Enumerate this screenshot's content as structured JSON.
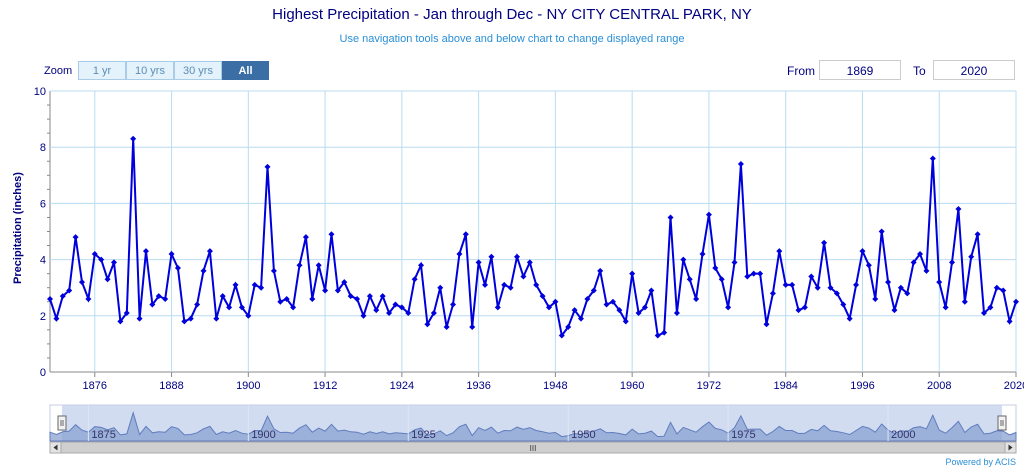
{
  "header": {
    "title": "Highest Precipitation - Jan through Dec - NY CITY CENTRAL PARK, NY",
    "subtitle": "Use navigation tools above and below chart to change displayed range"
  },
  "zoom": {
    "label": "Zoom",
    "buttons": [
      {
        "label": "1 yr",
        "active": false
      },
      {
        "label": "10 yrs",
        "active": false
      },
      {
        "label": "30 yrs",
        "active": false
      },
      {
        "label": "All",
        "active": true
      }
    ]
  },
  "range": {
    "from_label": "From",
    "from_value": "1869",
    "to_label": "To",
    "to_value": "2020"
  },
  "footer": {
    "powered_by": "Powered by ACIS"
  },
  "navigator": {
    "tick_labels": [
      "1875",
      "1900",
      "1925",
      "1950",
      "1975",
      "2000"
    ],
    "scroll_label": "III"
  },
  "colors": {
    "line": "#0000dd",
    "grid": "#b8dcf2",
    "text": "#000080",
    "nav_fill": "#8aa3d2",
    "nav_selection": "#c6d3ee"
  },
  "chart_data": {
    "type": "line",
    "title": "Highest Precipitation - Jan through Dec - NY CITY CENTRAL PARK, NY",
    "xlabel": "",
    "ylabel": "Precipitation (inches)",
    "xlim": [
      1869,
      2020
    ],
    "ylim": [
      0,
      10
    ],
    "x_ticks": [
      1876,
      1888,
      1900,
      1912,
      1924,
      1936,
      1948,
      1960,
      1972,
      1984,
      1996,
      2008,
      2020
    ],
    "y_ticks": [
      0,
      2,
      4,
      6,
      8,
      10
    ],
    "grid": true,
    "legend": "none",
    "x": [
      1869,
      1870,
      1871,
      1872,
      1873,
      1874,
      1875,
      1876,
      1877,
      1878,
      1879,
      1880,
      1881,
      1882,
      1883,
      1884,
      1885,
      1886,
      1887,
      1888,
      1889,
      1890,
      1891,
      1892,
      1893,
      1894,
      1895,
      1896,
      1897,
      1898,
      1899,
      1900,
      1901,
      1902,
      1903,
      1904,
      1905,
      1906,
      1907,
      1908,
      1909,
      1910,
      1911,
      1912,
      1913,
      1914,
      1915,
      1916,
      1917,
      1918,
      1919,
      1920,
      1921,
      1922,
      1923,
      1924,
      1925,
      1926,
      1927,
      1928,
      1929,
      1930,
      1931,
      1932,
      1933,
      1934,
      1935,
      1936,
      1937,
      1938,
      1939,
      1940,
      1941,
      1942,
      1943,
      1944,
      1945,
      1946,
      1947,
      1948,
      1949,
      1950,
      1951,
      1952,
      1953,
      1954,
      1955,
      1956,
      1957,
      1958,
      1959,
      1960,
      1961,
      1962,
      1963,
      1964,
      1965,
      1966,
      1967,
      1968,
      1969,
      1970,
      1971,
      1972,
      1973,
      1974,
      1975,
      1976,
      1977,
      1978,
      1979,
      1980,
      1981,
      1982,
      1983,
      1984,
      1985,
      1986,
      1987,
      1988,
      1989,
      1990,
      1991,
      1992,
      1993,
      1994,
      1995,
      1996,
      1997,
      1998,
      1999,
      2000,
      2001,
      2002,
      2003,
      2004,
      2005,
      2006,
      2007,
      2008,
      2009,
      2010,
      2011,
      2012,
      2013,
      2014,
      2015,
      2016,
      2017,
      2018,
      2019,
      2020
    ],
    "series": [
      {
        "values": [
          2.6,
          1.9,
          2.7,
          2.9,
          4.8,
          3.2,
          2.6,
          4.2,
          4.0,
          3.3,
          3.9,
          1.8,
          2.1,
          8.3,
          1.9,
          4.3,
          2.4,
          2.7,
          2.6,
          4.2,
          3.7,
          1.8,
          1.9,
          2.4,
          3.6,
          4.3,
          1.9,
          2.7,
          2.3,
          3.1,
          2.3,
          2.0,
          3.1,
          3.0,
          7.3,
          3.6,
          2.5,
          2.6,
          2.3,
          3.8,
          4.8,
          2.6,
          3.8,
          2.9,
          4.9,
          2.9,
          3.2,
          2.7,
          2.6,
          2.0,
          2.7,
          2.2,
          2.7,
          2.1,
          2.4,
          2.3,
          2.1,
          3.3,
          3.8,
          1.7,
          2.1,
          3.0,
          1.6,
          2.4,
          4.2,
          4.9,
          1.6,
          3.9,
          3.1,
          4.1,
          2.3,
          3.1,
          3.0,
          4.1,
          3.4,
          3.9,
          3.1,
          2.7,
          2.3,
          2.5,
          1.3,
          1.6,
          2.2,
          1.9,
          2.6,
          2.9,
          3.6,
          2.4,
          2.5,
          2.2,
          1.8,
          3.5,
          2.1,
          2.3,
          2.9,
          1.3,
          1.4,
          5.5,
          2.1,
          4.0,
          3.3,
          2.6,
          4.2,
          5.6,
          3.7,
          3.3,
          2.3,
          3.9,
          7.4,
          3.4,
          3.5,
          3.5,
          1.7,
          2.8,
          4.3,
          3.1,
          3.1,
          2.2,
          2.3,
          3.4,
          3.0,
          4.6,
          3.0,
          2.8,
          2.4,
          1.9,
          3.1,
          4.3,
          3.8,
          2.6,
          5.0,
          3.2,
          2.2,
          3.0,
          2.8,
          3.9,
          4.2,
          3.6,
          7.6,
          3.2,
          2.3,
          3.9,
          5.8,
          2.5,
          4.1,
          4.9,
          2.1,
          2.3,
          3.0,
          2.9,
          1.8,
          2.5
        ]
      }
    ]
  }
}
